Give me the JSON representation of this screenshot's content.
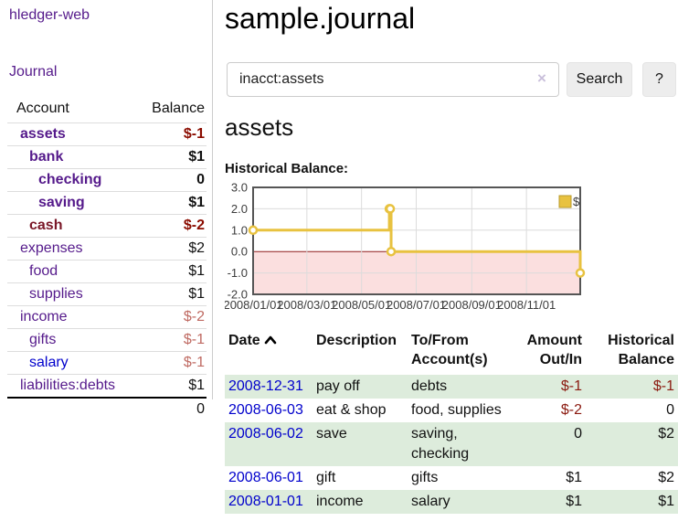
{
  "sidebar": {
    "app_title": "hledger-web",
    "nav": {
      "journal": "Journal"
    },
    "accounts": {
      "headers": {
        "account": "Account",
        "balance": "Balance"
      },
      "rows": [
        {
          "name": "assets",
          "depth": "1",
          "name_tone": "purple-bold",
          "balance": "$-1",
          "balance_tone": "neg-bold"
        },
        {
          "name": "bank",
          "depth": "2",
          "name_tone": "purple-bold",
          "balance": "$1",
          "balance_tone": "num-bold"
        },
        {
          "name": "checking",
          "depth": "3",
          "name_tone": "purple-bold",
          "balance": "0",
          "balance_tone": "num-bold"
        },
        {
          "name": "saving",
          "depth": "3",
          "name_tone": "purple-bold",
          "balance": "$1",
          "balance_tone": "num-bold"
        },
        {
          "name": "cash",
          "depth": "2",
          "name_tone": "maroon-bold",
          "balance": "$-2",
          "balance_tone": "neg-bold"
        },
        {
          "name": "expenses",
          "depth": "1",
          "name_tone": "purple",
          "balance": "$2",
          "balance_tone": "num"
        },
        {
          "name": "food",
          "depth": "2",
          "name_tone": "purple",
          "balance": "$1",
          "balance_tone": "num"
        },
        {
          "name": "supplies",
          "depth": "2",
          "name_tone": "purple",
          "balance": "$1",
          "balance_tone": "num"
        },
        {
          "name": "income",
          "depth": "1",
          "name_tone": "purple",
          "balance": "$-2",
          "balance_tone": "neg-soft"
        },
        {
          "name": "gifts",
          "depth": "2",
          "name_tone": "purple",
          "balance": "$-1",
          "balance_tone": "neg-soft"
        },
        {
          "name": "salary",
          "depth": "2",
          "name_tone": "blue",
          "balance": "$-1",
          "balance_tone": "neg-soft"
        },
        {
          "name": "liabilities:debts",
          "depth": "1",
          "name_tone": "purple",
          "balance": "$1",
          "balance_tone": "num"
        }
      ],
      "total": "0"
    }
  },
  "main": {
    "title": "sample.journal",
    "search": {
      "value": "inacct:assets",
      "clear_icon": "×",
      "button_label": "Search",
      "help_label": "?"
    },
    "account_heading": "assets",
    "chart_label": "Historical Balance:",
    "register": {
      "headers": {
        "date": "Date",
        "description": "Description",
        "accounts": "To/From Account(s)",
        "amount": "Amount Out/In",
        "balance": "Historical Balance"
      },
      "sort_icon": "chevron-up",
      "rows": [
        {
          "date": "2008-12-31",
          "description": "pay off",
          "accounts": "debts",
          "amount": "$-1",
          "amount_tone": "neg",
          "balance": "$-1",
          "balance_tone": "neg",
          "shade": "green"
        },
        {
          "date": "2008-06-03",
          "description": "eat & shop",
          "accounts": "food, supplies",
          "amount": "$-2",
          "amount_tone": "neg",
          "balance": "0",
          "balance_tone": "num",
          "shade": "white"
        },
        {
          "date": "2008-06-02",
          "description": "save",
          "accounts": "saving, checking",
          "amount": "0",
          "amount_tone": "num",
          "balance": "$2",
          "balance_tone": "num",
          "shade": "green"
        },
        {
          "date": "2008-06-01",
          "description": "gift",
          "accounts": "gifts",
          "amount": "$1",
          "amount_tone": "num",
          "balance": "$2",
          "balance_tone": "num",
          "shade": "white"
        },
        {
          "date": "2008-01-01",
          "description": "income",
          "accounts": "salary",
          "amount": "$1",
          "amount_tone": "num",
          "balance": "$1",
          "balance_tone": "num",
          "shade": "green"
        }
      ]
    }
  },
  "chart_data": {
    "type": "line",
    "title": "Historical Balance:",
    "style": "step",
    "series": [
      {
        "name": "$",
        "color": "#e8c240",
        "points": [
          [
            "2008-01-01",
            1
          ],
          [
            "2008-06-01",
            2
          ],
          [
            "2008-06-02",
            2
          ],
          [
            "2008-06-03",
            0
          ],
          [
            "2008-12-31",
            -1
          ]
        ]
      }
    ],
    "ylim": [
      -2,
      3
    ],
    "yticks": [
      {
        "v": 3,
        "label": "3.0"
      },
      {
        "v": 2,
        "label": "2.0"
      },
      {
        "v": 1,
        "label": "1.0"
      },
      {
        "v": 0,
        "label": "0.0"
      },
      {
        "v": -1,
        "label": "-1.0"
      },
      {
        "v": -2,
        "label": "-2.0"
      }
    ],
    "xticks": [
      {
        "date": "2008-01-01",
        "label": "2008/01/01"
      },
      {
        "date": "2008-03-01",
        "label": "2008/03/01"
      },
      {
        "date": "2008-05-01",
        "label": "2008/05/01"
      },
      {
        "date": "2008-07-01",
        "label": "2008/07/01"
      },
      {
        "date": "2008-09-01",
        "label": "2008/09/01"
      },
      {
        "date": "2008-11-01",
        "label": "2008/11/01"
      }
    ],
    "legend_position": "top-right",
    "grid_on": true,
    "colors": {
      "negative_region": "#fbdfdf",
      "zero_line": "#8f1f1f",
      "grid": "#dcdcdc",
      "frame": "#555555",
      "tick_text": "#3c3c3c",
      "marker_fill": "#ffffff"
    }
  }
}
